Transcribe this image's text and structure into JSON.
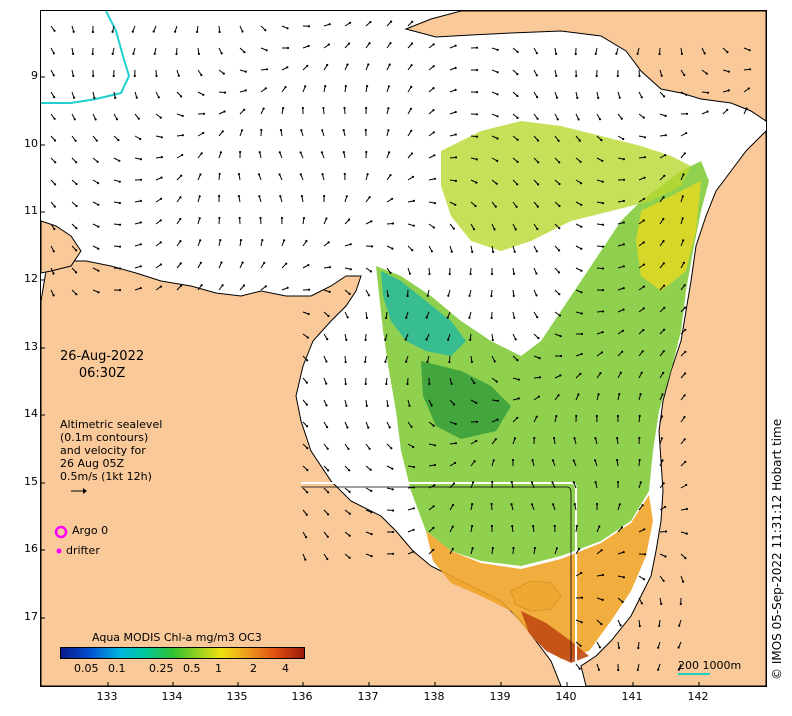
{
  "map": {
    "lat_labels": [
      "9",
      "10",
      "11",
      "12",
      "13",
      "14",
      "15",
      "16",
      "17"
    ],
    "lon_labels": [
      "133",
      "134",
      "135",
      "136",
      "137",
      "138",
      "139",
      "140",
      "141",
      "142"
    ],
    "date_line1": "26-Aug-2022",
    "date_line2": "06:30Z",
    "altimetry_lines": [
      "Altimetric sealevel",
      "(0.1m contours)",
      "and velocity for",
      "26 Aug 05Z",
      "0.5m/s (1kt 12h)"
    ],
    "legend": {
      "argo": "Argo 0",
      "drifter": "drifter",
      "argo_color": "#ff00ff",
      "drifter_color": "#ff00ff"
    },
    "colorbar": {
      "title": "Aqua MODIS Chl-a mg/m3 OC3",
      "ticks": [
        "0.05",
        "0.1",
        "0.25",
        "0.5",
        "1",
        "2",
        "4"
      ]
    },
    "scale_label": "200  1000m",
    "credit": "© IMOS 05-Sep-2022 11:31:12 Hobart time",
    "colors": {
      "land": "#f9c99a",
      "coast": "#000000",
      "bathy_line": "#20d0d0",
      "chl_low": "#20b050",
      "chl_mid": "#90d020",
      "chl_high": "#f0a020",
      "chl_max": "#c04010"
    }
  }
}
